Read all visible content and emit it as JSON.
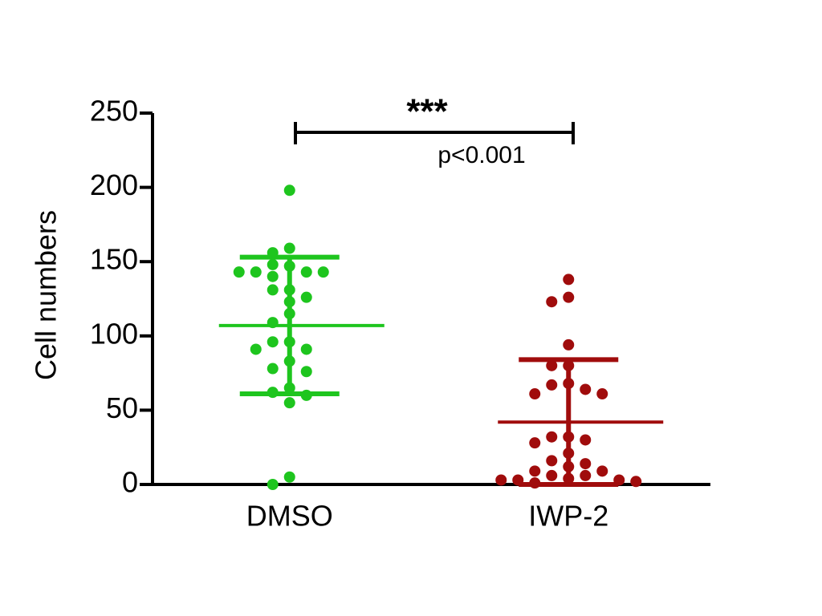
{
  "chart_data": {
    "type": "scatter_dot",
    "y_label": "Cell numbers",
    "categories": [
      "DMSO",
      "IWP-2"
    ],
    "groups": [
      {
        "color": "#1ec51e",
        "values": [
          198,
          159,
          156,
          147,
          148,
          143,
          143,
          143,
          143,
          140,
          131,
          131,
          126,
          123,
          115,
          109,
          96,
          96,
          91,
          91,
          83,
          78,
          76,
          65,
          62,
          60,
          55,
          5,
          0
        ],
        "mean": 107,
        "sd": 46
      },
      {
        "color": "#a00c0c",
        "values": [
          138,
          126,
          123,
          94,
          80,
          80,
          68,
          67,
          64,
          61,
          61,
          32,
          32,
          30,
          28,
          21,
          16,
          14,
          12,
          9,
          9,
          6,
          6,
          4,
          3,
          3,
          3,
          2,
          1
        ],
        "mean": 42,
        "sd": 42
      }
    ],
    "ylim": [
      0,
      250
    ],
    "yticks": [
      0,
      50,
      100,
      150,
      200,
      250
    ],
    "annotations": {
      "stars": "***",
      "p_value": "p<0.001"
    }
  }
}
